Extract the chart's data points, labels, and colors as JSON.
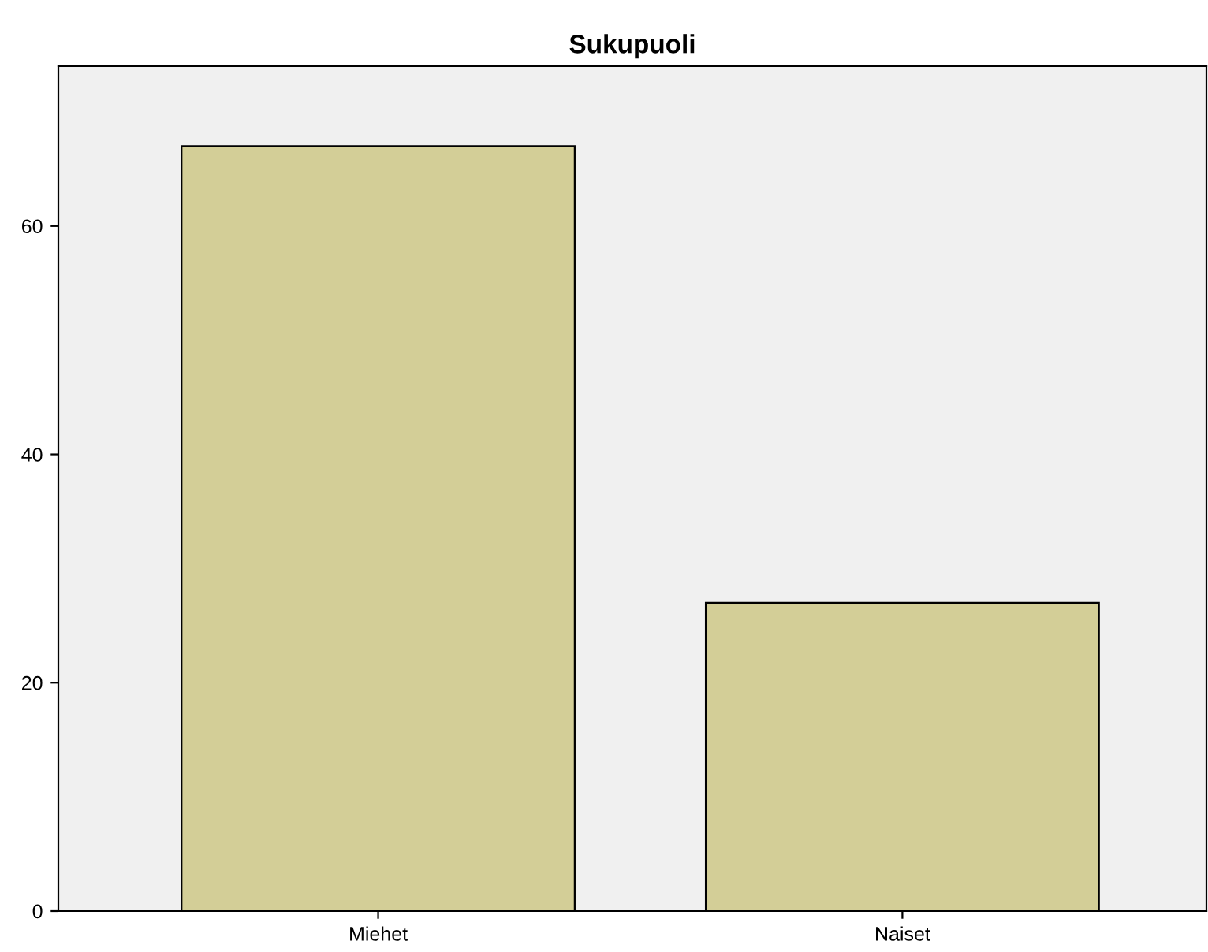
{
  "chart_data": {
    "type": "bar",
    "title": "Sukupuoli",
    "categories": [
      "Miehet",
      "Naiset"
    ],
    "values": [
      67,
      27
    ],
    "color": "#d3ce97",
    "ylim": [
      0,
      74
    ],
    "yticks": [
      0,
      20,
      40,
      60
    ],
    "grid": false
  }
}
